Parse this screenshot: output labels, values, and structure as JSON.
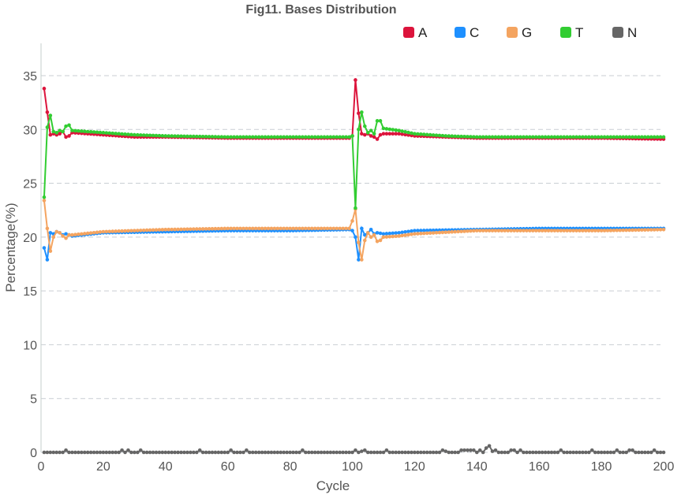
{
  "chart_data": {
    "type": "line",
    "title": "Fig11. Bases Distribution",
    "xlabel": "Cycle",
    "ylabel": "Percentage(%)",
    "xlim": [
      0,
      200
    ],
    "ylim": [
      0,
      38
    ],
    "xticks": [
      0,
      20,
      40,
      60,
      80,
      100,
      120,
      140,
      160,
      180,
      200
    ],
    "yticks": [
      0,
      5,
      10,
      15,
      20,
      25,
      30,
      35
    ],
    "grid": "horizontal dashed",
    "legend_position": "top-right",
    "series": [
      {
        "name": "A",
        "color": "#dc143c",
        "keys": [
          [
            1,
            33.8
          ],
          [
            2,
            31.6
          ],
          [
            3,
            29.5
          ],
          [
            4,
            29.6
          ],
          [
            5,
            29.5
          ],
          [
            6,
            29.6
          ],
          [
            7,
            29.8
          ],
          [
            8,
            29.3
          ],
          [
            9,
            29.4
          ],
          [
            10,
            29.7
          ],
          [
            15,
            29.6
          ],
          [
            20,
            29.5
          ],
          [
            25,
            29.4
          ],
          [
            30,
            29.3
          ],
          [
            40,
            29.3
          ],
          [
            60,
            29.2
          ],
          [
            80,
            29.2
          ],
          [
            99,
            29.2
          ],
          [
            100,
            29.4
          ],
          [
            101,
            34.6
          ],
          [
            102,
            31.5
          ],
          [
            103,
            29.6
          ],
          [
            104,
            29.5
          ],
          [
            105,
            29.6
          ],
          [
            106,
            29.4
          ],
          [
            107,
            29.3
          ],
          [
            108,
            29.1
          ],
          [
            109,
            29.5
          ],
          [
            110,
            29.6
          ],
          [
            115,
            29.6
          ],
          [
            120,
            29.4
          ],
          [
            130,
            29.3
          ],
          [
            140,
            29.2
          ],
          [
            160,
            29.2
          ],
          [
            180,
            29.2
          ],
          [
            200,
            29.1
          ]
        ]
      },
      {
        "name": "C",
        "color": "#1e90ff",
        "keys": [
          [
            1,
            19.0
          ],
          [
            2,
            17.9
          ],
          [
            3,
            20.4
          ],
          [
            4,
            20.3
          ],
          [
            5,
            20.5
          ],
          [
            6,
            20.4
          ],
          [
            7,
            20.2
          ],
          [
            8,
            20.3
          ],
          [
            9,
            20.2
          ],
          [
            10,
            20.1
          ],
          [
            20,
            20.4
          ],
          [
            40,
            20.5
          ],
          [
            60,
            20.6
          ],
          [
            80,
            20.6
          ],
          [
            99,
            20.7
          ],
          [
            100,
            20.6
          ],
          [
            101,
            20.0
          ],
          [
            102,
            17.9
          ],
          [
            103,
            20.8
          ],
          [
            104,
            20.2
          ],
          [
            105,
            20.4
          ],
          [
            106,
            20.7
          ],
          [
            107,
            20.3
          ],
          [
            108,
            20.4
          ],
          [
            110,
            20.3
          ],
          [
            115,
            20.4
          ],
          [
            120,
            20.6
          ],
          [
            140,
            20.7
          ],
          [
            160,
            20.8
          ],
          [
            180,
            20.8
          ],
          [
            200,
            20.8
          ]
        ]
      },
      {
        "name": "G",
        "color": "#f4a460",
        "keys": [
          [
            1,
            23.4
          ],
          [
            2,
            20.8
          ],
          [
            3,
            18.7
          ],
          [
            4,
            20.0
          ],
          [
            5,
            20.5
          ],
          [
            6,
            20.4
          ],
          [
            7,
            20.1
          ],
          [
            8,
            19.9
          ],
          [
            9,
            20.2
          ],
          [
            10,
            20.2
          ],
          [
            20,
            20.5
          ],
          [
            40,
            20.7
          ],
          [
            60,
            20.8
          ],
          [
            80,
            20.8
          ],
          [
            99,
            20.8
          ],
          [
            100,
            21.5
          ],
          [
            101,
            22.6
          ],
          [
            102,
            19.5
          ],
          [
            103,
            17.9
          ],
          [
            104,
            19.7
          ],
          [
            105,
            20.4
          ],
          [
            106,
            20.0
          ],
          [
            107,
            20.2
          ],
          [
            108,
            19.6
          ],
          [
            109,
            19.7
          ],
          [
            110,
            20.0
          ],
          [
            115,
            20.1
          ],
          [
            120,
            20.3
          ],
          [
            140,
            20.6
          ],
          [
            160,
            20.6
          ],
          [
            180,
            20.6
          ],
          [
            200,
            20.7
          ]
        ]
      },
      {
        "name": "T",
        "color": "#32cd32",
        "keys": [
          [
            1,
            23.7
          ],
          [
            2,
            30.2
          ],
          [
            3,
            31.3
          ],
          [
            4,
            29.8
          ],
          [
            5,
            29.7
          ],
          [
            6,
            29.9
          ],
          [
            7,
            29.8
          ],
          [
            8,
            30.3
          ],
          [
            9,
            30.4
          ],
          [
            10,
            29.9
          ],
          [
            15,
            29.8
          ],
          [
            20,
            29.7
          ],
          [
            25,
            29.6
          ],
          [
            30,
            29.5
          ],
          [
            40,
            29.4
          ],
          [
            60,
            29.3
          ],
          [
            80,
            29.3
          ],
          [
            99,
            29.3
          ],
          [
            100,
            29.4
          ],
          [
            101,
            22.7
          ],
          [
            102,
            30.0
          ],
          [
            103,
            31.6
          ],
          [
            104,
            30.3
          ],
          [
            105,
            29.7
          ],
          [
            106,
            29.9
          ],
          [
            107,
            29.6
          ],
          [
            108,
            30.8
          ],
          [
            109,
            30.8
          ],
          [
            110,
            30.1
          ],
          [
            115,
            29.9
          ],
          [
            120,
            29.6
          ],
          [
            130,
            29.4
          ],
          [
            140,
            29.3
          ],
          [
            160,
            29.3
          ],
          [
            180,
            29.3
          ],
          [
            200,
            29.3
          ]
        ]
      },
      {
        "name": "N",
        "color": "#666666",
        "keys": [
          [
            1,
            0
          ],
          [
            7,
            0
          ],
          [
            8,
            0.2
          ],
          [
            9,
            0
          ],
          [
            25,
            0
          ],
          [
            26,
            0.2
          ],
          [
            27,
            0
          ],
          [
            28,
            0.2
          ],
          [
            29,
            0
          ],
          [
            31,
            0
          ],
          [
            32,
            0.2
          ],
          [
            33,
            0
          ],
          [
            50,
            0
          ],
          [
            51,
            0.2
          ],
          [
            52,
            0
          ],
          [
            60,
            0
          ],
          [
            61,
            0.2
          ],
          [
            62,
            0
          ],
          [
            65,
            0
          ],
          [
            66,
            0.2
          ],
          [
            67,
            0
          ],
          [
            83,
            0
          ],
          [
            84,
            0.2
          ],
          [
            85,
            0
          ],
          [
            100,
            0
          ],
          [
            101,
            0.2
          ],
          [
            102,
            0
          ],
          [
            104,
            0.2
          ],
          [
            105,
            0
          ],
          [
            110,
            0
          ],
          [
            111,
            0.2
          ],
          [
            112,
            0
          ],
          [
            128,
            0
          ],
          [
            129,
            0.2
          ],
          [
            130,
            0.1
          ],
          [
            131,
            0
          ],
          [
            134,
            0
          ],
          [
            135,
            0.2
          ],
          [
            136,
            0.2
          ],
          [
            137,
            0.2
          ],
          [
            138,
            0.2
          ],
          [
            139,
            0.2
          ],
          [
            140,
            0
          ],
          [
            141,
            0.2
          ],
          [
            142,
            0
          ],
          [
            143,
            0.4
          ],
          [
            144,
            0.6
          ],
          [
            145,
            0.1
          ],
          [
            146,
            0.2
          ],
          [
            147,
            0
          ],
          [
            150,
            0
          ],
          [
            151,
            0.2
          ],
          [
            152,
            0.2
          ],
          [
            153,
            0
          ],
          [
            154,
            0.2
          ],
          [
            155,
            0
          ],
          [
            166,
            0
          ],
          [
            167,
            0.2
          ],
          [
            168,
            0
          ],
          [
            176,
            0
          ],
          [
            177,
            0.2
          ],
          [
            178,
            0
          ],
          [
            184,
            0
          ],
          [
            185,
            0.2
          ],
          [
            186,
            0
          ],
          [
            188,
            0
          ],
          [
            189,
            0.2
          ],
          [
            190,
            0.2
          ],
          [
            191,
            0
          ],
          [
            196,
            0
          ],
          [
            197,
            0.2
          ],
          [
            198,
            0
          ],
          [
            200,
            0
          ]
        ]
      }
    ]
  }
}
